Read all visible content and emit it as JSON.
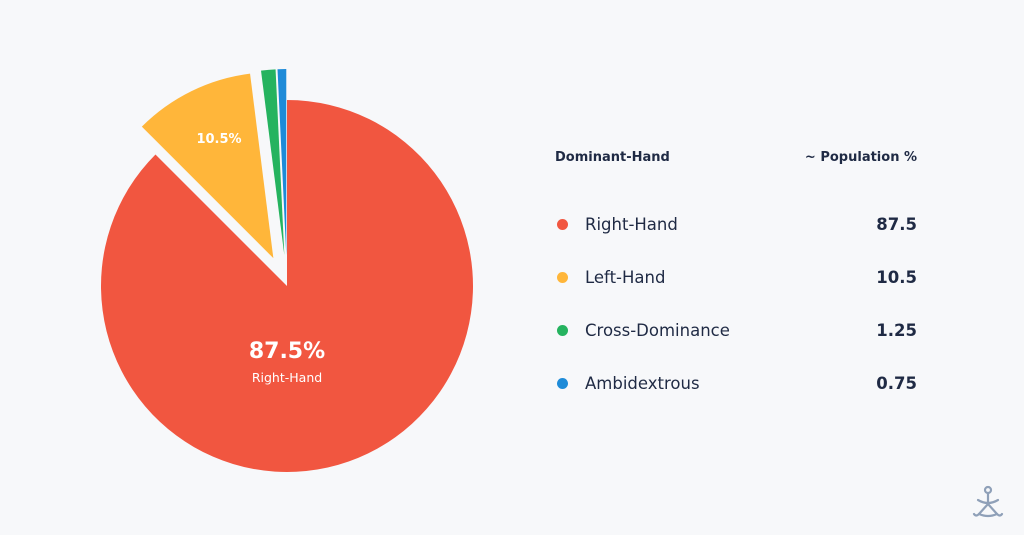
{
  "chart_data": {
    "type": "pie",
    "slices": [
      {
        "name": "Right-Hand",
        "value": 87.5,
        "color": "#f15640",
        "exploded": false
      },
      {
        "name": "Left-Hand",
        "value": 10.5,
        "color": "#ffb63a",
        "exploded": true
      },
      {
        "name": "Cross-Dominance",
        "value": 1.25,
        "color": "#25b35f",
        "exploded": true
      },
      {
        "name": "Ambidextrous",
        "value": 0.75,
        "color": "#1e8bd8",
        "exploded": true
      }
    ],
    "slice_labels": {
      "right": {
        "pct": "87.5%",
        "name": "Right-Hand"
      },
      "left": {
        "pct": "10.5%"
      }
    }
  },
  "legend": {
    "col_left": "Dominant-Hand",
    "col_right": "~ Population %",
    "rows": [
      {
        "name": "Right-Hand",
        "value": "87.5",
        "color": "#f15640"
      },
      {
        "name": "Left-Hand",
        "value": "10.5",
        "color": "#ffb63a"
      },
      {
        "name": "Cross-Dominance",
        "value": "1.25",
        "color": "#25b35f"
      },
      {
        "name": "Ambidextrous",
        "value": "0.75",
        "color": "#1e8bd8"
      }
    ]
  },
  "logo": {
    "icon": "tri-figure-logo-icon",
    "color": "#8fa0b8"
  }
}
